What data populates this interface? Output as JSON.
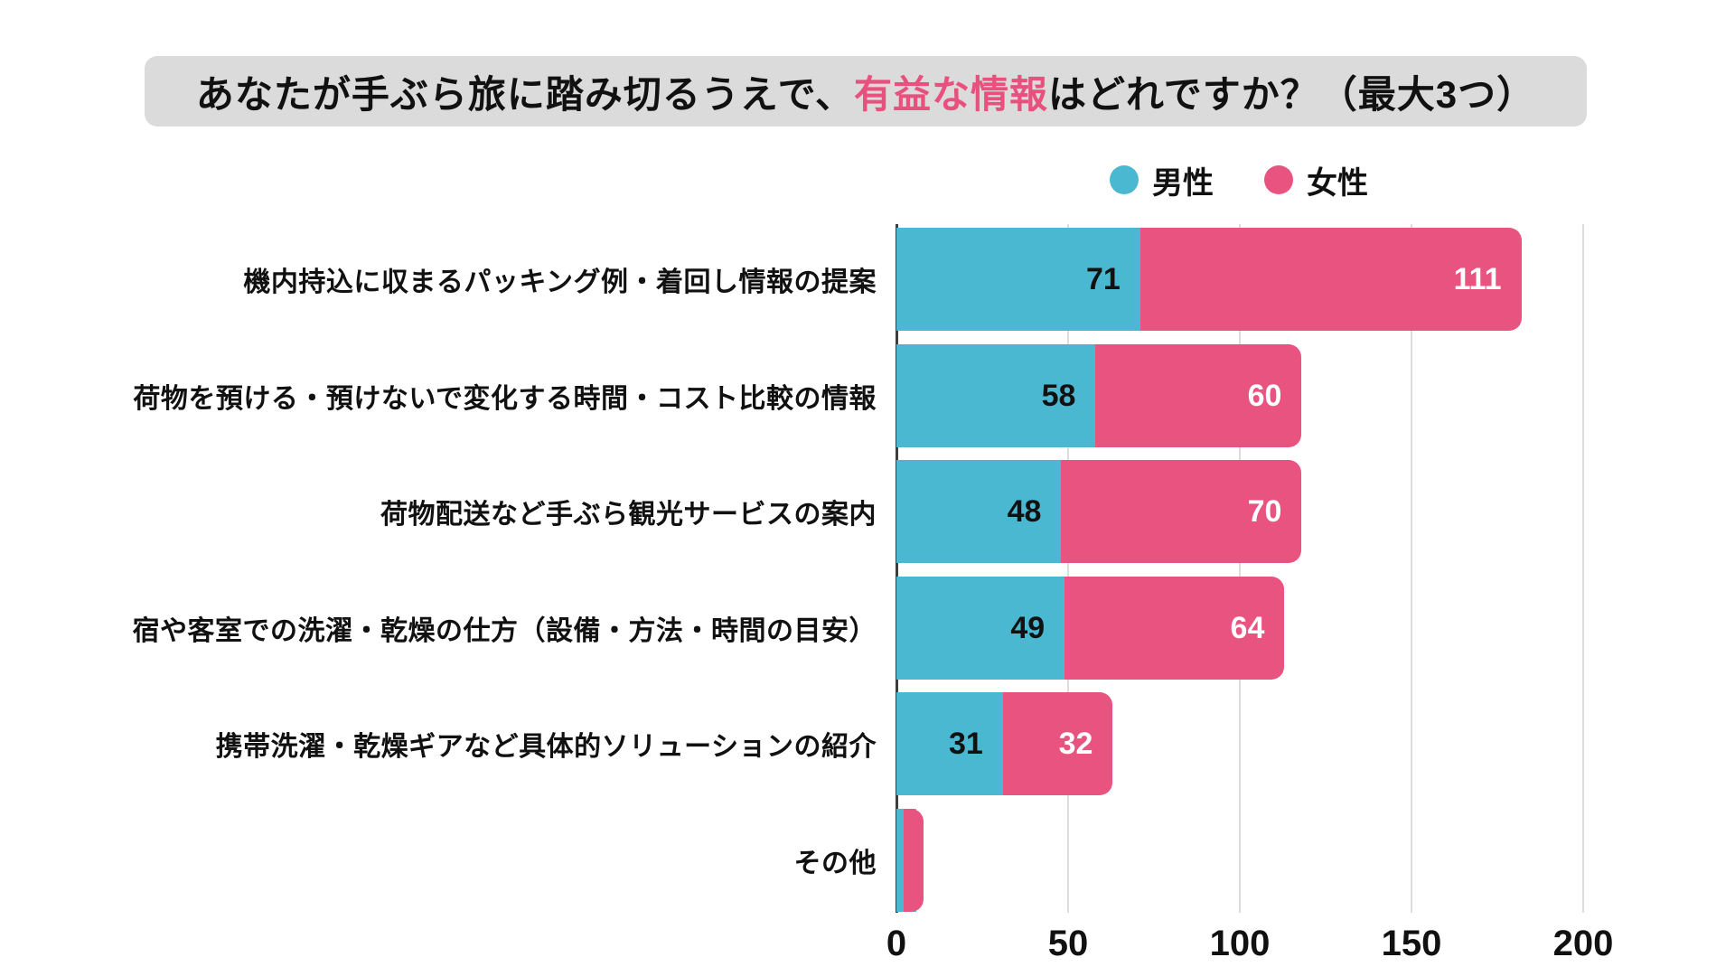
{
  "title": {
    "prefix": "あなたが手ぶら旅に踏み切るうえで、",
    "highlight": "有益な情報",
    "suffix": "はどれですか？（最大3つ）"
  },
  "colors": {
    "male": "#4BB8D2",
    "female": "#E8537F",
    "title_highlight": "#E8517E",
    "title_background": "#DBDBDB",
    "gridline": "#DDDDDD",
    "zero_line": "#3D3D3D"
  },
  "legend": {
    "items": [
      {
        "label": "男性",
        "color": "#4BB8D2"
      },
      {
        "label": "女性",
        "color": "#E8537F"
      }
    ]
  },
  "chart_data": {
    "type": "bar",
    "orientation": "horizontal",
    "stacked": true,
    "title": "あなたが手ぶら旅に踏み切るうえで、有益な情報はどれですか？（最大3つ）",
    "categories": [
      "機内持込に収まるパッキング例・着回し情報の提案",
      "荷物を預ける・預けないで変化する時間・コスト比較の情報",
      "荷物配送など手ぶら観光サービスの案内",
      "宿や客室での洗濯・乾燥の仕方（設備・方法・時間の目安）",
      "携帯洗濯・乾燥ギアなど具体的ソリューションの紹介",
      "その他"
    ],
    "series": [
      {
        "name": "男性",
        "color": "#4BB8D2",
        "values": [
          71,
          58,
          48,
          49,
          31,
          2
        ]
      },
      {
        "name": "女性",
        "color": "#E8537F",
        "values": [
          111,
          60,
          70,
          64,
          32,
          3
        ]
      }
    ],
    "xlim": [
      0,
      200
    ],
    "xticks": [
      0,
      50,
      100,
      150,
      200
    ],
    "grid": "vertical",
    "legend_position": "top-right",
    "note": "その他 segment values are unlabeled in the chart; ~2 (男性) and ~3 (女性) estimated from bar length"
  }
}
